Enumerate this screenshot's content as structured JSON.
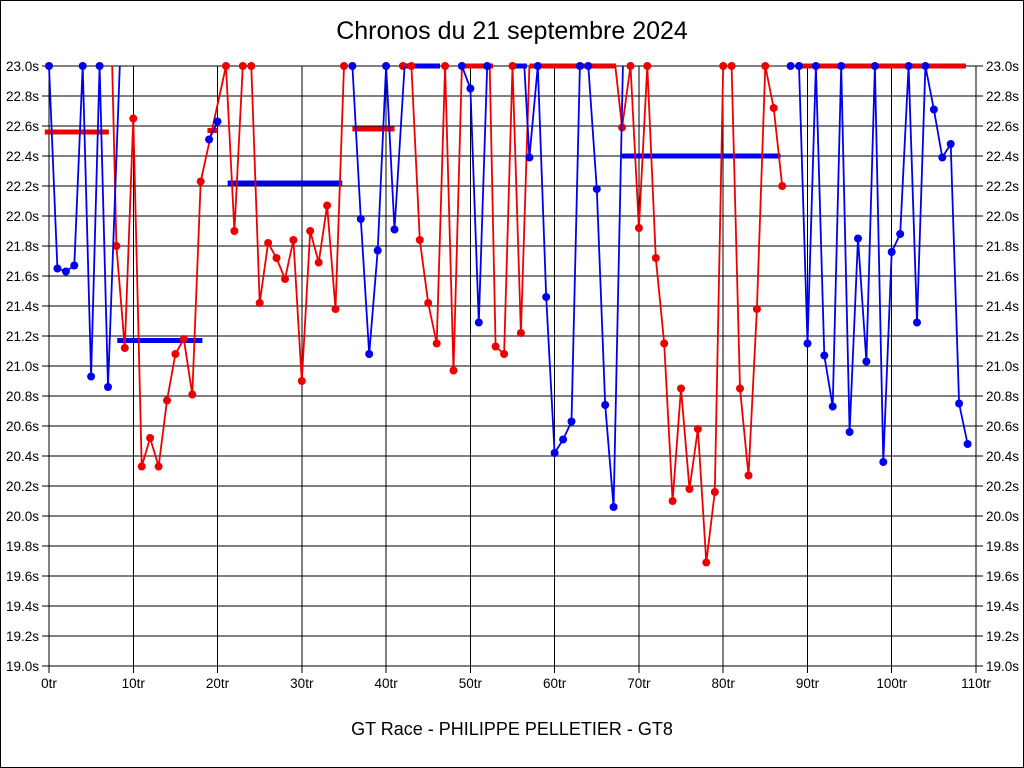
{
  "chart_data": {
    "type": "line",
    "title": "Chronos du 21 septembre 2024",
    "footer": "GT Race - PHILIPPE PELLETIER - GT8",
    "xlabel": "",
    "ylabel": "",
    "xlim": [
      0,
      110
    ],
    "ylim": [
      19.0,
      23.0
    ],
    "grid": true,
    "x_unit": "tr",
    "y_unit": "s",
    "x_ticks": [
      {
        "lap": 0,
        "label": "0tr"
      },
      {
        "lap": 10,
        "label": "10tr"
      },
      {
        "lap": 20,
        "label": "20tr"
      },
      {
        "lap": 30,
        "label": "30tr"
      },
      {
        "lap": 40,
        "label": "40tr"
      },
      {
        "lap": 50,
        "label": "50tr"
      },
      {
        "lap": 60,
        "label": "60tr"
      },
      {
        "lap": 70,
        "label": "70tr"
      },
      {
        "lap": 80,
        "label": "80tr"
      },
      {
        "lap": 90,
        "label": "90tr"
      },
      {
        "lap": 100,
        "label": "100tr"
      },
      {
        "lap": 110,
        "label": "110tr"
      }
    ],
    "y_ticks": [
      {
        "value": 23.0,
        "label": "23.0s"
      },
      {
        "value": 22.8,
        "label": "22.8s"
      },
      {
        "value": 22.6,
        "label": "22.6s"
      },
      {
        "value": 22.4,
        "label": "22.4s"
      },
      {
        "value": 22.2,
        "label": "22.2s"
      },
      {
        "value": 22.0,
        "label": "22.0s"
      },
      {
        "value": 21.8,
        "label": "21.8s"
      },
      {
        "value": 21.6,
        "label": "21.6s"
      },
      {
        "value": 21.4,
        "label": "21.4s"
      },
      {
        "value": 21.2,
        "label": "21.2s"
      },
      {
        "value": 21.0,
        "label": "21.0s"
      },
      {
        "value": 20.8,
        "label": "20.8s"
      },
      {
        "value": 20.6,
        "label": "20.6s"
      },
      {
        "value": 20.4,
        "label": "20.4s"
      },
      {
        "value": 20.2,
        "label": "20.2s"
      },
      {
        "value": 20.0,
        "label": "20.0s"
      },
      {
        "value": 19.8,
        "label": "19.8s"
      },
      {
        "value": 19.6,
        "label": "19.6s"
      },
      {
        "value": 19.4,
        "label": "19.4s"
      },
      {
        "value": 19.2,
        "label": "19.2s"
      },
      {
        "value": 19.0,
        "label": "19.0s"
      }
    ],
    "series": [
      {
        "name": "driver-red-laps",
        "color": "#ee0000",
        "note": "points are [lap, seconds, dot-visible]; values above 23.0s are capped at 23.0",
        "stints": [
          {
            "points": [
              [
                7.5,
                23.0,
                0
              ],
              [
                8,
                21.8,
                1
              ],
              [
                9,
                21.12,
                1
              ],
              [
                10,
                22.65,
                1
              ],
              [
                11,
                20.33,
                1
              ],
              [
                12,
                20.52,
                1
              ],
              [
                13,
                20.33,
                1
              ],
              [
                14,
                20.77,
                1
              ],
              [
                15,
                21.08,
                1
              ],
              [
                16,
                21.18,
                1
              ],
              [
                17,
                20.81,
                1
              ],
              [
                18,
                22.23,
                1
              ],
              [
                21,
                23.0,
                1
              ],
              [
                22,
                21.9,
                1
              ],
              [
                23,
                23.0,
                1
              ],
              [
                24,
                23.0,
                1
              ],
              [
                25,
                21.42,
                1
              ],
              [
                26,
                21.82,
                1
              ],
              [
                27,
                21.72,
                1
              ],
              [
                28,
                21.58,
                1
              ],
              [
                29,
                21.84,
                1
              ],
              [
                30,
                20.9,
                1
              ],
              [
                31,
                21.9,
                1
              ],
              [
                32,
                21.69,
                1
              ],
              [
                33,
                22.07,
                1
              ],
              [
                34,
                21.38,
                1
              ],
              [
                35,
                23.0,
                1
              ]
            ]
          },
          {
            "points": [
              [
                42,
                23.0,
                1
              ],
              [
                43,
                23.0,
                1
              ],
              [
                44,
                21.84,
                1
              ],
              [
                45,
                21.42,
                1
              ],
              [
                46,
                21.15,
                1
              ],
              [
                47,
                23.0,
                1
              ],
              [
                48,
                20.97,
                1
              ],
              [
                49.0,
                23.0,
                0
              ]
            ]
          },
          {
            "points": [
              [
                52.3,
                23.0,
                0
              ],
              [
                53,
                21.13,
                1
              ],
              [
                54,
                21.08,
                1
              ],
              [
                55,
                23.0,
                1
              ],
              [
                56,
                21.22,
                1
              ],
              [
                57.0,
                23.0,
                0
              ]
            ]
          },
          {
            "points": [
              [
                67.2,
                23.0,
                0
              ],
              [
                68,
                22.59,
                1
              ],
              [
                69,
                23.0,
                1
              ],
              [
                70,
                21.92,
                1
              ],
              [
                71,
                23.0,
                1
              ],
              [
                72,
                21.72,
                1
              ],
              [
                73,
                21.15,
                1
              ],
              [
                74,
                20.1,
                1
              ],
              [
                75,
                20.85,
                1
              ],
              [
                76,
                20.18,
                1
              ],
              [
                77,
                20.58,
                1
              ],
              [
                78,
                19.69,
                1
              ],
              [
                79,
                20.16,
                1
              ],
              [
                80,
                23.0,
                1
              ],
              [
                81,
                23.0,
                1
              ],
              [
                82,
                20.85,
                1
              ],
              [
                83,
                20.27,
                1
              ],
              [
                84,
                21.38,
                1
              ],
              [
                85,
                23.0,
                1
              ],
              [
                86,
                22.72,
                1
              ],
              [
                87,
                22.2,
                1
              ]
            ]
          }
        ]
      },
      {
        "name": "driver-blue-laps",
        "color": "#0000ee",
        "note": "points are [lap, seconds, dot-visible]; values above 23.0s are capped at 23.0",
        "stints": [
          {
            "points": [
              [
                0,
                23.0,
                1
              ],
              [
                1,
                21.65,
                1
              ],
              [
                2,
                21.63,
                1
              ],
              [
                3,
                21.67,
                1
              ],
              [
                4,
                23.0,
                1
              ],
              [
                5,
                20.93,
                1
              ],
              [
                6,
                23.0,
                1
              ],
              [
                7,
                20.86,
                1
              ],
              [
                8.4,
                23.0,
                0
              ]
            ]
          },
          {
            "points": [
              [
                19,
                22.51,
                1
              ],
              [
                20,
                22.63,
                1
              ]
            ]
          },
          {
            "points": [
              [
                36,
                23.0,
                1
              ],
              [
                37,
                21.98,
                1
              ],
              [
                38,
                21.08,
                1
              ],
              [
                39,
                21.77,
                1
              ],
              [
                40,
                23.0,
                1
              ],
              [
                41,
                21.91,
                1
              ],
              [
                42.2,
                23.0,
                0
              ]
            ]
          },
          {
            "points": [
              [
                49,
                23.0,
                1
              ],
              [
                50,
                22.85,
                1
              ],
              [
                51,
                21.29,
                1
              ],
              [
                52,
                23.0,
                1
              ]
            ]
          },
          {
            "points": [
              [
                56.4,
                23.0,
                0
              ],
              [
                57,
                22.39,
                1
              ],
              [
                58,
                23.0,
                1
              ],
              [
                59,
                21.46,
                1
              ],
              [
                60,
                20.42,
                1
              ],
              [
                61,
                20.51,
                1
              ],
              [
                62,
                20.63,
                1
              ],
              [
                63,
                23.0,
                1
              ],
              [
                64,
                23.0,
                1
              ],
              [
                65,
                22.18,
                1
              ],
              [
                66,
                20.74,
                1
              ],
              [
                67,
                20.06,
                1
              ],
              [
                68.1,
                23.0,
                0
              ]
            ]
          },
          {
            "points": [
              [
                88,
                23.0,
                1
              ],
              [
                89,
                23.0,
                1
              ],
              [
                90,
                21.15,
                1
              ],
              [
                91,
                23.0,
                1
              ],
              [
                92,
                21.07,
                1
              ],
              [
                93,
                20.73,
                1
              ],
              [
                94,
                23.0,
                1
              ],
              [
                95,
                20.56,
                1
              ],
              [
                96,
                21.85,
                1
              ],
              [
                97,
                21.03,
                1
              ],
              [
                98,
                23.0,
                1
              ],
              [
                99,
                20.36,
                1
              ],
              [
                100,
                21.76,
                1
              ],
              [
                101,
                21.88,
                1
              ],
              [
                102,
                23.0,
                1
              ],
              [
                103,
                21.29,
                1
              ],
              [
                104,
                23.0,
                1
              ],
              [
                105,
                22.71,
                1
              ],
              [
                106,
                22.39,
                1
              ],
              [
                107,
                22.48,
                1
              ],
              [
                108,
                20.75,
                1
              ],
              [
                109,
                20.48,
                1
              ]
            ]
          }
        ]
      }
    ],
    "average_bars": [
      {
        "color": "#ee0000",
        "from": -0.5,
        "to": 7.1,
        "value": 22.56
      },
      {
        "color": "#0000ee",
        "from": 8.1,
        "to": 18.2,
        "value": 21.17
      },
      {
        "color": "#ee0000",
        "from": 18.8,
        "to": 20.0,
        "value": 22.57
      },
      {
        "color": "#0000ee",
        "from": 21.2,
        "to": 34.8,
        "value": 22.22
      },
      {
        "color": "#ee0000",
        "from": 36.0,
        "to": 41.0,
        "value": 22.58
      },
      {
        "color": "#0000ee",
        "from": 42.3,
        "to": 46.4,
        "value": 23.0
      },
      {
        "color": "#ee0000",
        "from": 49.4,
        "to": 52.7,
        "value": 23.0
      },
      {
        "color": "#0000ee",
        "from": 55.3,
        "to": 56.7,
        "value": 23.0
      },
      {
        "color": "#ee0000",
        "from": 57.0,
        "to": 67.3,
        "value": 23.0
      },
      {
        "color": "#0000ee",
        "from": 68.0,
        "to": 86.8,
        "value": 22.4
      },
      {
        "color": "#ee0000",
        "from": 89.0,
        "to": 108.8,
        "value": 23.0
      }
    ]
  }
}
